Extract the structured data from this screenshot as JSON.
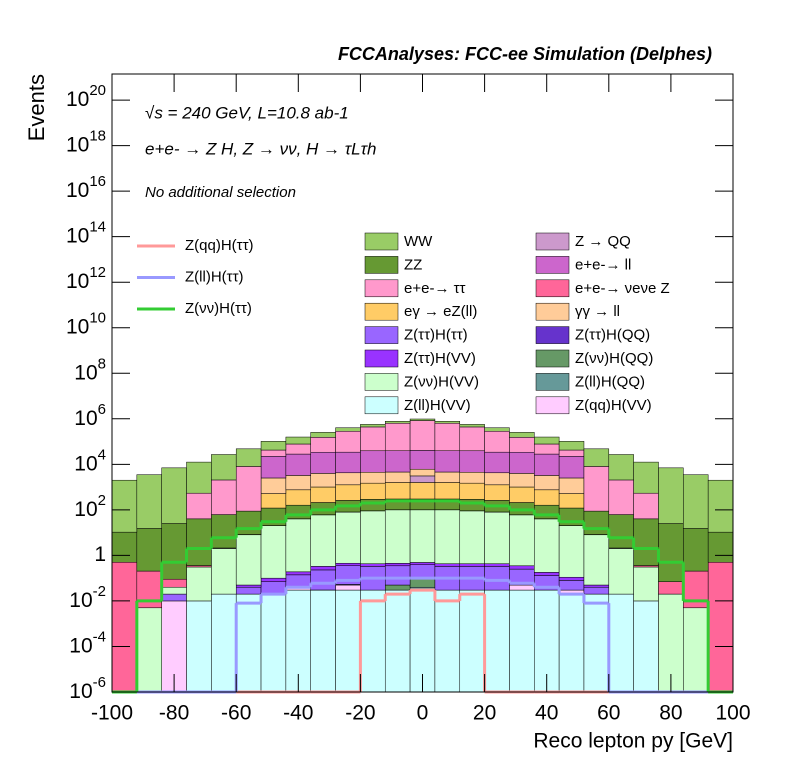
{
  "chart_data": {
    "type": "histogram",
    "title": "FCCAnalyses: FCC-ee Simulation (Delphes)",
    "x_label": "Reco lepton py [GeV]",
    "y_label": "Events",
    "annotations": [
      "√s = 240 GeV, L=10.8 ab-1",
      "e+e- → Z H, Z → νν, H → τLτh",
      "No additional selection"
    ],
    "log_y": true,
    "stacked": true,
    "bins": [
      -100,
      -92,
      -84,
      -76,
      -68,
      -60,
      -52,
      -44,
      -36,
      -28,
      -20,
      -12,
      -4,
      4,
      12,
      20,
      28,
      36,
      44,
      52,
      60,
      68,
      76,
      84,
      92,
      100
    ],
    "xlim": [
      -100,
      100
    ],
    "ylim": [
      1e-06,
      1.4e+21
    ],
    "xticks": [
      -100,
      -80,
      -60,
      -40,
      -20,
      0,
      20,
      40,
      60,
      80,
      100
    ],
    "yticks": [
      {
        "value": 1e-06,
        "label": "10-6"
      },
      {
        "value": 0.0001,
        "label": "10-4"
      },
      {
        "value": 0.01,
        "label": "10-2"
      },
      1,
      {
        "value": 100.0,
        "label": "102"
      },
      {
        "value": 10000.0,
        "label": "104"
      },
      {
        "value": 1000000.0,
        "label": "106"
      },
      {
        "value": 100000000.0,
        "label": "108"
      },
      {
        "value": 10000000000.0,
        "label": "1010"
      },
      {
        "value": 1000000000000.0,
        "label": "1012"
      },
      {
        "value": 100000000000000.0,
        "label": "1014"
      },
      {
        "value": 1e+16,
        "label": "1016"
      },
      {
        "value": 1e+18,
        "label": "1018"
      },
      {
        "value": 1e+20,
        "label": "1020"
      }
    ],
    "series": [
      {
        "name": "WW",
        "color": "#99cc66",
        "values": [
          2000,
          3500,
          7000,
          12000,
          25000,
          40000,
          60000,
          80000,
          100000,
          120000,
          130000,
          140000,
          140000,
          140000,
          130000,
          120000,
          100000,
          80000,
          60000,
          40000,
          25000,
          12000,
          7000,
          3500,
          2000
        ]
      },
      {
        "name": "ZZ",
        "color": "#669933",
        "values": [
          10,
          15,
          25,
          40,
          60,
          80,
          100,
          120,
          150,
          180,
          200,
          200,
          200,
          200,
          200,
          180,
          150,
          120,
          100,
          80,
          60,
          40,
          25,
          15,
          10
        ]
      },
      {
        "name": "e+e-→ ττ",
        "color": "#ff99cc",
        "values": [
          0,
          0,
          0,
          500,
          2000,
          8000,
          20000,
          50000,
          120000,
          250000,
          400000,
          600000,
          800000,
          600000,
          400000,
          250000,
          120000,
          50000,
          20000,
          8000,
          2000,
          500,
          0,
          0,
          0
        ]
      },
      {
        "name": "eγ → eZ(ll)",
        "color": "#ffcc66",
        "values": [
          0,
          0,
          0,
          0,
          0,
          0,
          400,
          600,
          800,
          1000,
          1200,
          1300,
          1300,
          1300,
          1200,
          1000,
          800,
          600,
          400,
          0,
          0,
          0,
          0,
          0,
          0
        ]
      },
      {
        "name": "Z(ττ)H(ττ)",
        "color": "#9966ff",
        "values": [
          0,
          0,
          0.01,
          0,
          0,
          0.02,
          0.05,
          0.1,
          0.2,
          0.3,
          0.3,
          0.3,
          0.3,
          0.3,
          0.3,
          0.3,
          0.2,
          0.1,
          0.05,
          0.02,
          0,
          0,
          0,
          0,
          0
        ]
      },
      {
        "name": "Z(ττ)H(VV)",
        "color": "#9933ff",
        "values": [
          0,
          0,
          0,
          0,
          0,
          0.01,
          0.03,
          0.05,
          0.1,
          0.1,
          0.1,
          0.1,
          0.1,
          0.1,
          0.1,
          0.1,
          0.1,
          0.05,
          0.03,
          0.01,
          0,
          0,
          0,
          0,
          0
        ]
      },
      {
        "name": "Z(νν)H(VV)",
        "color": "#ccffcc",
        "values": [
          0,
          0.005,
          0.02,
          0.3,
          2,
          8,
          20,
          40,
          60,
          80,
          90,
          100,
          100,
          100,
          90,
          80,
          60,
          40,
          20,
          8,
          2,
          0.3,
          0.02,
          0.005,
          0
        ]
      },
      {
        "name": "Z(ll)H(VV)",
        "color": "#ccffff",
        "values": [
          0,
          0,
          0,
          0.01,
          0.02,
          0.02,
          0.02,
          0.03,
          0.03,
          0.03,
          0.03,
          0.03,
          0.03,
          0.03,
          0.03,
          0.03,
          0.03,
          0.03,
          0.02,
          0.02,
          0.02,
          0.01,
          0,
          0,
          0
        ]
      },
      {
        "name": "Z → QQ",
        "color": "#cc99cc",
        "values": [
          0,
          0,
          0,
          0,
          0,
          0,
          0,
          0,
          0,
          0,
          0,
          0,
          1500,
          0,
          0,
          0,
          0,
          0,
          0,
          0,
          0,
          0,
          0,
          0,
          0
        ]
      },
      {
        "name": "e+e-→ ll",
        "color": "#cc66cc",
        "values": [
          0,
          0,
          0,
          0,
          0,
          0,
          20000,
          25000,
          30000,
          30000,
          35000,
          35000,
          35000,
          35000,
          35000,
          30000,
          30000,
          25000,
          20000,
          0,
          0,
          0,
          0,
          0,
          0
        ]
      },
      {
        "name": "e+e-→ νeνe Z",
        "color": "#ff6699",
        "values": [
          0.5,
          0.2,
          0.05,
          0.05,
          0.1,
          0.2,
          0.3,
          0.5,
          0.5,
          0.5,
          0.5,
          0.5,
          0.5,
          0.5,
          0.5,
          0.5,
          0.5,
          0.5,
          0.3,
          0.2,
          0.1,
          0.05,
          0.05,
          0.2,
          0.5
        ]
      },
      {
        "name": "γγ → ll",
        "color": "#ffcc99",
        "values": [
          0,
          0,
          0,
          0,
          0,
          0,
          2000,
          2500,
          3000,
          3000,
          3000,
          3000,
          3000,
          3000,
          3000,
          3000,
          3000,
          2500,
          2000,
          0,
          0,
          0,
          0,
          0,
          0
        ]
      },
      {
        "name": "Z(ττ)H(QQ)",
        "color": "#6633cc",
        "values": [
          0,
          0,
          0,
          0,
          0,
          0,
          0,
          0,
          0.0003,
          0,
          0,
          0,
          0,
          0,
          0,
          0,
          0,
          0,
          0,
          0,
          0,
          0,
          0,
          0,
          0
        ]
      },
      {
        "name": "Z(νν)H(QQ)",
        "color": "#669966",
        "values": [
          0,
          0,
          0,
          0,
          0,
          0,
          0,
          0,
          0,
          0,
          0,
          0.02,
          0.05,
          0,
          0,
          0,
          0,
          0,
          0,
          0,
          0,
          0,
          0,
          0,
          0
        ]
      },
      {
        "name": "Z(ll)H(QQ)",
        "color": "#669999",
        "values": [
          0,
          0,
          0,
          0,
          0,
          0,
          0,
          0,
          0,
          0.003,
          0,
          0,
          0.01,
          0,
          0,
          0,
          0,
          0,
          0,
          0,
          0,
          0,
          0,
          0,
          0
        ]
      },
      {
        "name": "Z(qq)H(VV)",
        "color": "#ffccff",
        "values": [
          0,
          0,
          0.01,
          0,
          0,
          0,
          0,
          0.01,
          0,
          0.02,
          0,
          0,
          0,
          0,
          0,
          0,
          0.02,
          0,
          0.01,
          0,
          0,
          0,
          0,
          0,
          0
        ]
      }
    ],
    "overlay_series": [
      {
        "name": "Z(qq)H(ττ)",
        "color": "#ff9999",
        "values": [
          0,
          0,
          0,
          0,
          0,
          0,
          0,
          0,
          0,
          0,
          0.01,
          0.02,
          0.03,
          0.01,
          0.02,
          0,
          0,
          0,
          0,
          0,
          0,
          0,
          0,
          0,
          0
        ]
      },
      {
        "name": "Z(ll)H(ττ)",
        "color": "#9999ff",
        "values": [
          0,
          0,
          0,
          0,
          0,
          0.008,
          0.02,
          0.04,
          0.06,
          0.08,
          0.1,
          0.1,
          0.1,
          0.1,
          0.1,
          0.08,
          0.06,
          0.04,
          0.02,
          0.008,
          0,
          0,
          0,
          0,
          0
        ]
      },
      {
        "name": "Z(νν)H(ττ)",
        "color": "#33cc33",
        "values": [
          0,
          0.01,
          0.5,
          2,
          6,
          15,
          30,
          60,
          100,
          150,
          200,
          250,
          250,
          250,
          200,
          150,
          100,
          60,
          30,
          15,
          6,
          2,
          0.5,
          0.01,
          0
        ]
      }
    ]
  }
}
